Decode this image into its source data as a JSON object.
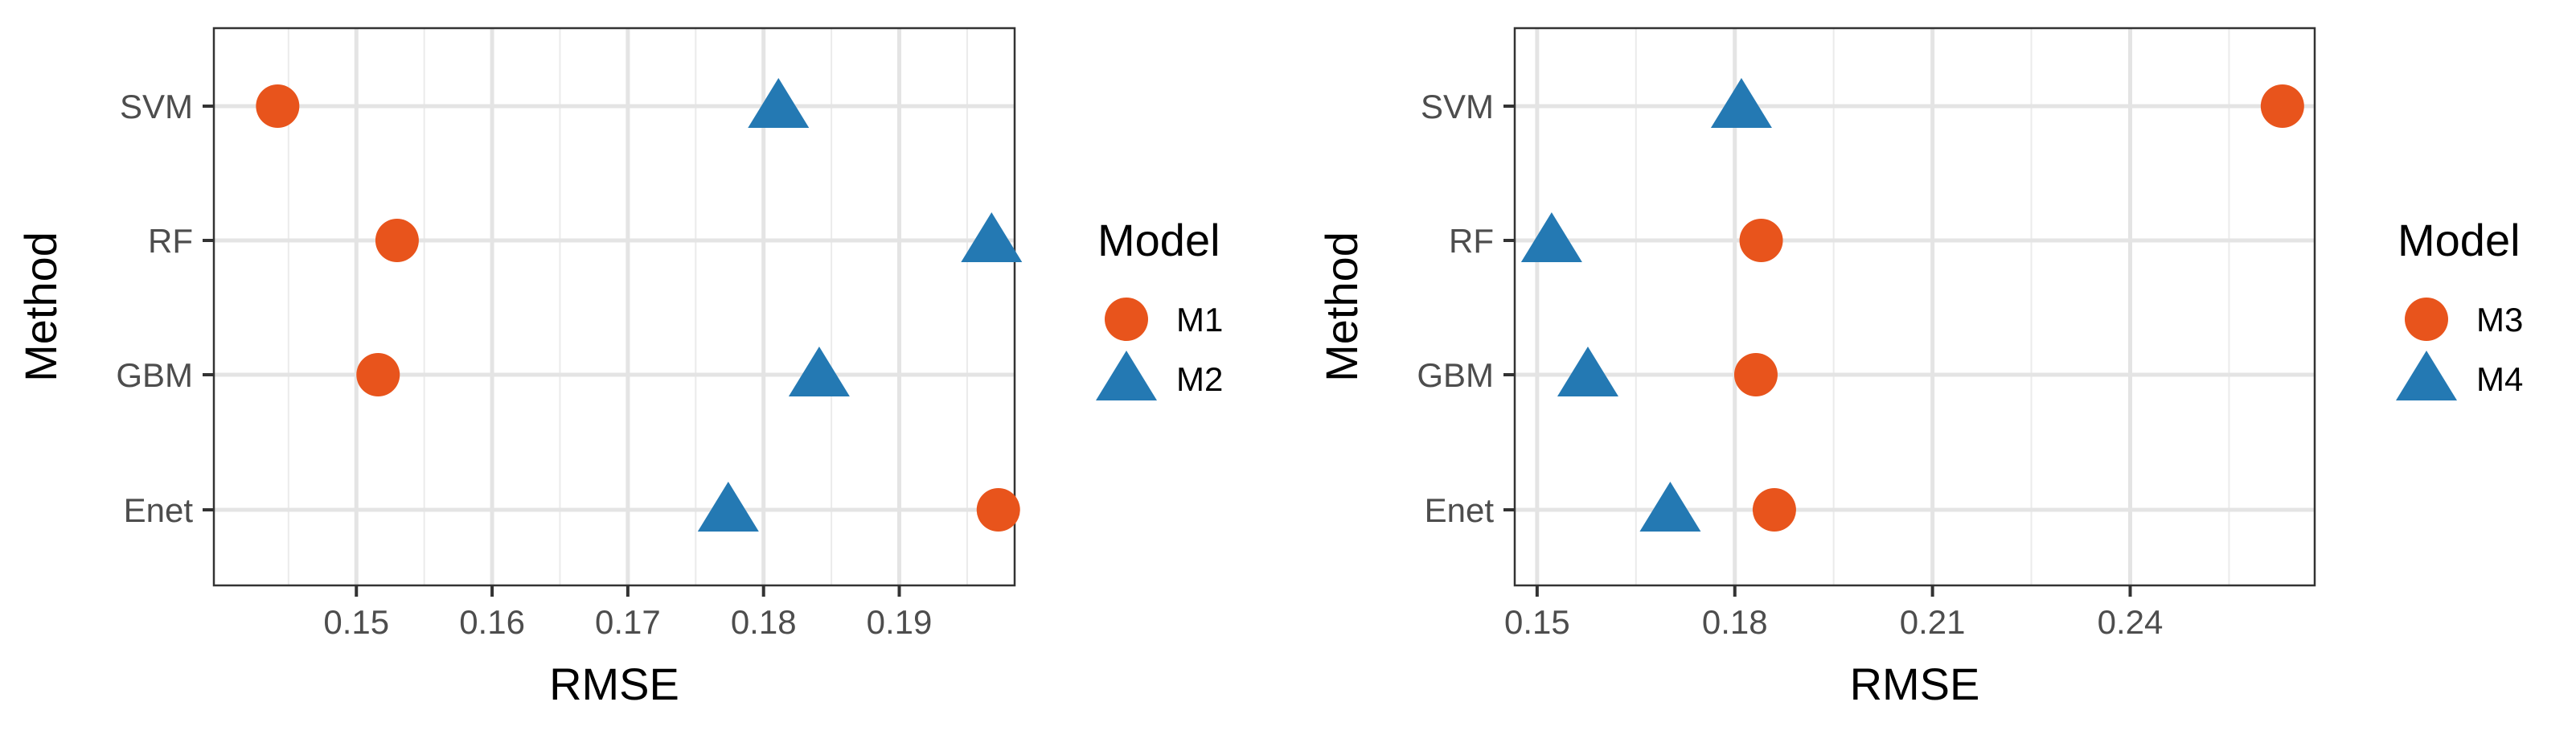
{
  "colors": {
    "circle": "#E8541C",
    "triangle": "#2479B3"
  },
  "chart_data": [
    {
      "type": "scatter",
      "xlabel": "RMSE",
      "ylabel": "Method",
      "categories": [
        "Enet",
        "GBM",
        "RF",
        "SVM"
      ],
      "xlim": [
        0.1395,
        0.1985
      ],
      "xticks": [
        0.15,
        0.16,
        0.17,
        0.18,
        0.19
      ],
      "xtick_labels": [
        "0.15",
        "0.16",
        "0.17",
        "0.18",
        "0.19"
      ],
      "grid": true,
      "legend": {
        "title": "Model",
        "position": "right"
      },
      "series": [
        {
          "name": "M1",
          "shape": "circle",
          "values": [
            0.1973,
            0.1516,
            0.153,
            0.1442
          ]
        },
        {
          "name": "M2",
          "shape": "triangle",
          "values": [
            0.1774,
            0.1841,
            0.1968,
            0.1811
          ]
        }
      ]
    },
    {
      "type": "scatter",
      "xlabel": "RMSE",
      "ylabel": "Method",
      "categories": [
        "Enet",
        "GBM",
        "RF",
        "SVM"
      ],
      "xlim": [
        0.1466,
        0.268
      ],
      "xticks": [
        0.15,
        0.18,
        0.21,
        0.24
      ],
      "xtick_labels": [
        "0.15",
        "0.18",
        "0.21",
        "0.24"
      ],
      "grid": true,
      "legend": {
        "title": "Model",
        "position": "right"
      },
      "series": [
        {
          "name": "M3",
          "shape": "circle",
          "values": [
            0.186,
            0.1832,
            0.184,
            0.2631
          ]
        },
        {
          "name": "M4",
          "shape": "triangle",
          "values": [
            0.1702,
            0.1577,
            0.1522,
            0.181
          ]
        }
      ]
    }
  ]
}
